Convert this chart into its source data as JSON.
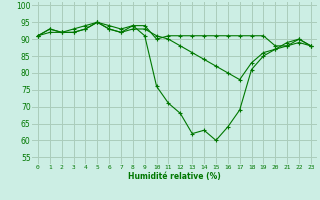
{
  "title": "",
  "xlabel": "Humidité relative (%)",
  "ylabel": "",
  "bg_color": "#cceee4",
  "grid_color": "#aaccbb",
  "line_color": "#007700",
  "marker_color": "#007700",
  "x_ticks": [
    0,
    1,
    2,
    3,
    4,
    5,
    6,
    7,
    8,
    9,
    10,
    11,
    12,
    13,
    14,
    15,
    16,
    17,
    18,
    19,
    20,
    21,
    22,
    23
  ],
  "y_ticks": [
    55,
    60,
    65,
    70,
    75,
    80,
    85,
    90,
    95,
    100
  ],
  "ylim": [
    53,
    101
  ],
  "xlim": [
    -0.5,
    23.5
  ],
  "series": [
    [
      91,
      92,
      92,
      93,
      94,
      95,
      94,
      93,
      94,
      94,
      90,
      91,
      91,
      91,
      91,
      91,
      91,
      91,
      91,
      91,
      88,
      88,
      89,
      88
    ],
    [
      91,
      93,
      92,
      92,
      93,
      95,
      93,
      92,
      93,
      93,
      91,
      90,
      88,
      86,
      84,
      82,
      80,
      78,
      83,
      86,
      87,
      88,
      90,
      88
    ],
    [
      91,
      93,
      92,
      92,
      93,
      95,
      93,
      92,
      94,
      91,
      76,
      71,
      68,
      62,
      63,
      60,
      64,
      69,
      81,
      85,
      87,
      89,
      90,
      88
    ]
  ]
}
